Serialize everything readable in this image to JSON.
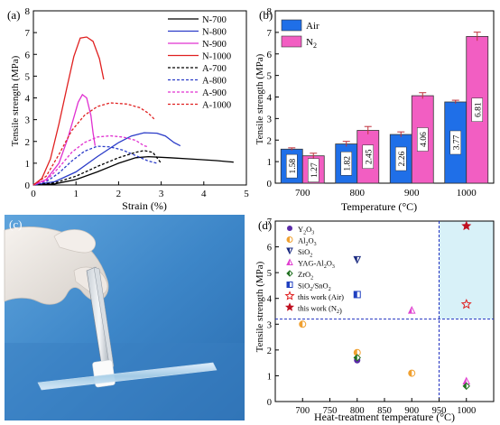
{
  "panels": {
    "a": "(a)",
    "b": "(b)",
    "c": "(c)",
    "d": "(d)"
  },
  "chart_data": [
    {
      "id": "a",
      "type": "line",
      "xlabel": "Strain (%)",
      "ylabel": "Tensile strength (MPa)",
      "xlim": [
        0,
        5
      ],
      "ylim": [
        0,
        8
      ],
      "xticks": [
        0,
        1,
        2,
        3,
        4,
        5
      ],
      "yticks": [
        0,
        1,
        2,
        3,
        4,
        5,
        6,
        7,
        8
      ],
      "legend_position": "top-right",
      "series": [
        {
          "name": "N-700",
          "color": "#000000",
          "dash": "solid",
          "points": [
            [
              0,
              0
            ],
            [
              0.5,
              0.05
            ],
            [
              1.0,
              0.25
            ],
            [
              1.5,
              0.6
            ],
            [
              2.0,
              1.0
            ],
            [
              2.4,
              1.25
            ],
            [
              2.7,
              1.3
            ],
            [
              3.2,
              1.25
            ],
            [
              3.8,
              1.18
            ],
            [
              4.3,
              1.12
            ],
            [
              4.7,
              1.05
            ]
          ]
        },
        {
          "name": "N-800",
          "color": "#2b3cc8",
          "dash": "solid",
          "points": [
            [
              0,
              0
            ],
            [
              0.5,
              0.15
            ],
            [
              1.0,
              0.6
            ],
            [
              1.5,
              1.3
            ],
            [
              2.0,
              1.95
            ],
            [
              2.3,
              2.25
            ],
            [
              2.6,
              2.4
            ],
            [
              2.9,
              2.38
            ],
            [
              3.1,
              2.25
            ],
            [
              3.3,
              1.95
            ],
            [
              3.45,
              1.8
            ]
          ]
        },
        {
          "name": "N-900",
          "color": "#e030d0",
          "dash": "solid",
          "points": [
            [
              0,
              0
            ],
            [
              0.3,
              0.25
            ],
            [
              0.6,
              1.0
            ],
            [
              0.8,
              2.1
            ],
            [
              0.95,
              3.1
            ],
            [
              1.05,
              3.8
            ],
            [
              1.15,
              4.15
            ],
            [
              1.25,
              4.0
            ],
            [
              1.35,
              3.2
            ],
            [
              1.4,
              2.4
            ],
            [
              1.45,
              1.8
            ]
          ]
        },
        {
          "name": "N-1000",
          "color": "#e02020",
          "dash": "solid",
          "points": [
            [
              0,
              0
            ],
            [
              0.2,
              0.3
            ],
            [
              0.4,
              1.2
            ],
            [
              0.6,
              2.8
            ],
            [
              0.8,
              4.6
            ],
            [
              0.95,
              5.9
            ],
            [
              1.1,
              6.75
            ],
            [
              1.25,
              6.8
            ],
            [
              1.4,
              6.6
            ],
            [
              1.55,
              5.8
            ],
            [
              1.65,
              4.85
            ]
          ]
        },
        {
          "name": "A-700",
          "color": "#000000",
          "dash": "dashed",
          "points": [
            [
              0,
              0
            ],
            [
              0.5,
              0.1
            ],
            [
              1.0,
              0.4
            ],
            [
              1.5,
              0.85
            ],
            [
              2.0,
              1.25
            ],
            [
              2.4,
              1.5
            ],
            [
              2.6,
              1.58
            ],
            [
              2.8,
              1.5
            ],
            [
              2.9,
              1.25
            ],
            [
              3.0,
              1.0
            ]
          ]
        },
        {
          "name": "A-800",
          "color": "#2b3cc8",
          "dash": "dashed",
          "points": [
            [
              0,
              0
            ],
            [
              0.3,
              0.15
            ],
            [
              0.6,
              0.55
            ],
            [
              0.9,
              1.1
            ],
            [
              1.2,
              1.55
            ],
            [
              1.5,
              1.78
            ],
            [
              1.8,
              1.75
            ],
            [
              2.1,
              1.6
            ],
            [
              2.4,
              1.35
            ],
            [
              2.7,
              1.1
            ],
            [
              2.9,
              1.0
            ]
          ]
        },
        {
          "name": "A-900",
          "color": "#e030d0",
          "dash": "dashed",
          "points": [
            [
              0,
              0
            ],
            [
              0.3,
              0.2
            ],
            [
              0.6,
              0.8
            ],
            [
              0.9,
              1.5
            ],
            [
              1.2,
              1.95
            ],
            [
              1.5,
              2.2
            ],
            [
              1.8,
              2.26
            ],
            [
              2.1,
              2.2
            ],
            [
              2.4,
              2.05
            ],
            [
              2.6,
              1.8
            ],
            [
              2.7,
              1.75
            ]
          ]
        },
        {
          "name": "A-1000",
          "color": "#e02020",
          "dash": "dashed",
          "points": [
            [
              0,
              0
            ],
            [
              0.3,
              0.4
            ],
            [
              0.6,
              1.4
            ],
            [
              0.9,
              2.5
            ],
            [
              1.2,
              3.2
            ],
            [
              1.5,
              3.6
            ],
            [
              1.8,
              3.77
            ],
            [
              2.2,
              3.72
            ],
            [
              2.5,
              3.55
            ],
            [
              2.7,
              3.3
            ],
            [
              2.85,
              3.0
            ]
          ]
        }
      ]
    },
    {
      "id": "b",
      "type": "bar",
      "xlabel": "Temperature (°C)",
      "ylabel": "Tensile strength (MPa)",
      "categories": [
        "700",
        "800",
        "900",
        "1000"
      ],
      "ylim": [
        0,
        8
      ],
      "yticks": [
        0,
        1,
        2,
        3,
        4,
        5,
        6,
        7,
        8
      ],
      "legend_position": "top-left",
      "series": [
        {
          "name": "Air",
          "color": "#1f6fe8",
          "values": [
            1.58,
            1.82,
            2.26,
            3.77
          ],
          "errors": [
            0.06,
            0.12,
            0.12,
            0.08
          ],
          "labels": [
            "1.58",
            "1.82",
            "2.26",
            "3.77"
          ]
        },
        {
          "name": "N",
          "name_sub": "2",
          "color": "#f25ec2",
          "values": [
            1.27,
            2.45,
            4.06,
            6.81
          ],
          "errors": [
            0.12,
            0.18,
            0.14,
            0.2
          ],
          "labels": [
            "1.27",
            "2.45",
            "4.06",
            "6.81"
          ]
        }
      ]
    },
    {
      "id": "d",
      "type": "scatter",
      "xlabel": "Heat-treatment temperature (°C)",
      "ylabel": "Tensile strength (MPa)",
      "xlim": [
        650,
        1050
      ],
      "ylim": [
        0,
        7
      ],
      "xticks": [
        700,
        750,
        800,
        850,
        900,
        950,
        1000
      ],
      "yticks": [
        0,
        1,
        2,
        3,
        4,
        5,
        6,
        7
      ],
      "threshold": {
        "x": 950,
        "y": 3.2
      },
      "legend_position": "top-left",
      "series": [
        {
          "name": "Y",
          "sub": [
            "2",
            "O",
            "3"
          ],
          "marker": "circle",
          "color": "#5a2aa8",
          "points": [
            [
              800,
              1.6
            ]
          ]
        },
        {
          "name": "Al",
          "sub": [
            "2",
            "O",
            "3"
          ],
          "marker": "half-circle",
          "color": "#f0a030",
          "points": [
            [
              700,
              3.0
            ],
            [
              800,
              1.9
            ],
            [
              900,
              1.1
            ]
          ]
        },
        {
          "name": "SiO",
          "sub": [
            "2",
            "",
            ""
          ],
          "marker": "triangle-down",
          "color": "#1a2a80",
          "points": [
            [
              800,
              5.5
            ]
          ]
        },
        {
          "name": "YAG-Al",
          "sub": [
            "2",
            "O",
            "3"
          ],
          "marker": "triangle-up",
          "color": "#e040d0",
          "points": [
            [
              900,
              3.55
            ],
            [
              1000,
              0.8
            ]
          ]
        },
        {
          "name": "ZrO",
          "sub": [
            "2",
            "",
            ""
          ],
          "marker": "diamond",
          "color": "#207020",
          "points": [
            [
              800,
              1.7
            ],
            [
              1000,
              0.6
            ]
          ]
        },
        {
          "name": "SiO",
          "sub": [
            "2",
            "/SnO",
            "2"
          ],
          "marker": "square",
          "color": "#2040c0",
          "points": [
            [
              800,
              4.15
            ]
          ]
        },
        {
          "name": "this work (Air)",
          "marker": "star-open",
          "color": "#e02020",
          "points": [
            [
              1000,
              3.77
            ]
          ]
        },
        {
          "name": "this work (N",
          "tail": ")",
          "sub": [
            "2",
            "",
            ""
          ],
          "marker": "star",
          "color": "#c01020",
          "points": [
            [
              1000,
              6.81
            ]
          ]
        }
      ]
    }
  ]
}
